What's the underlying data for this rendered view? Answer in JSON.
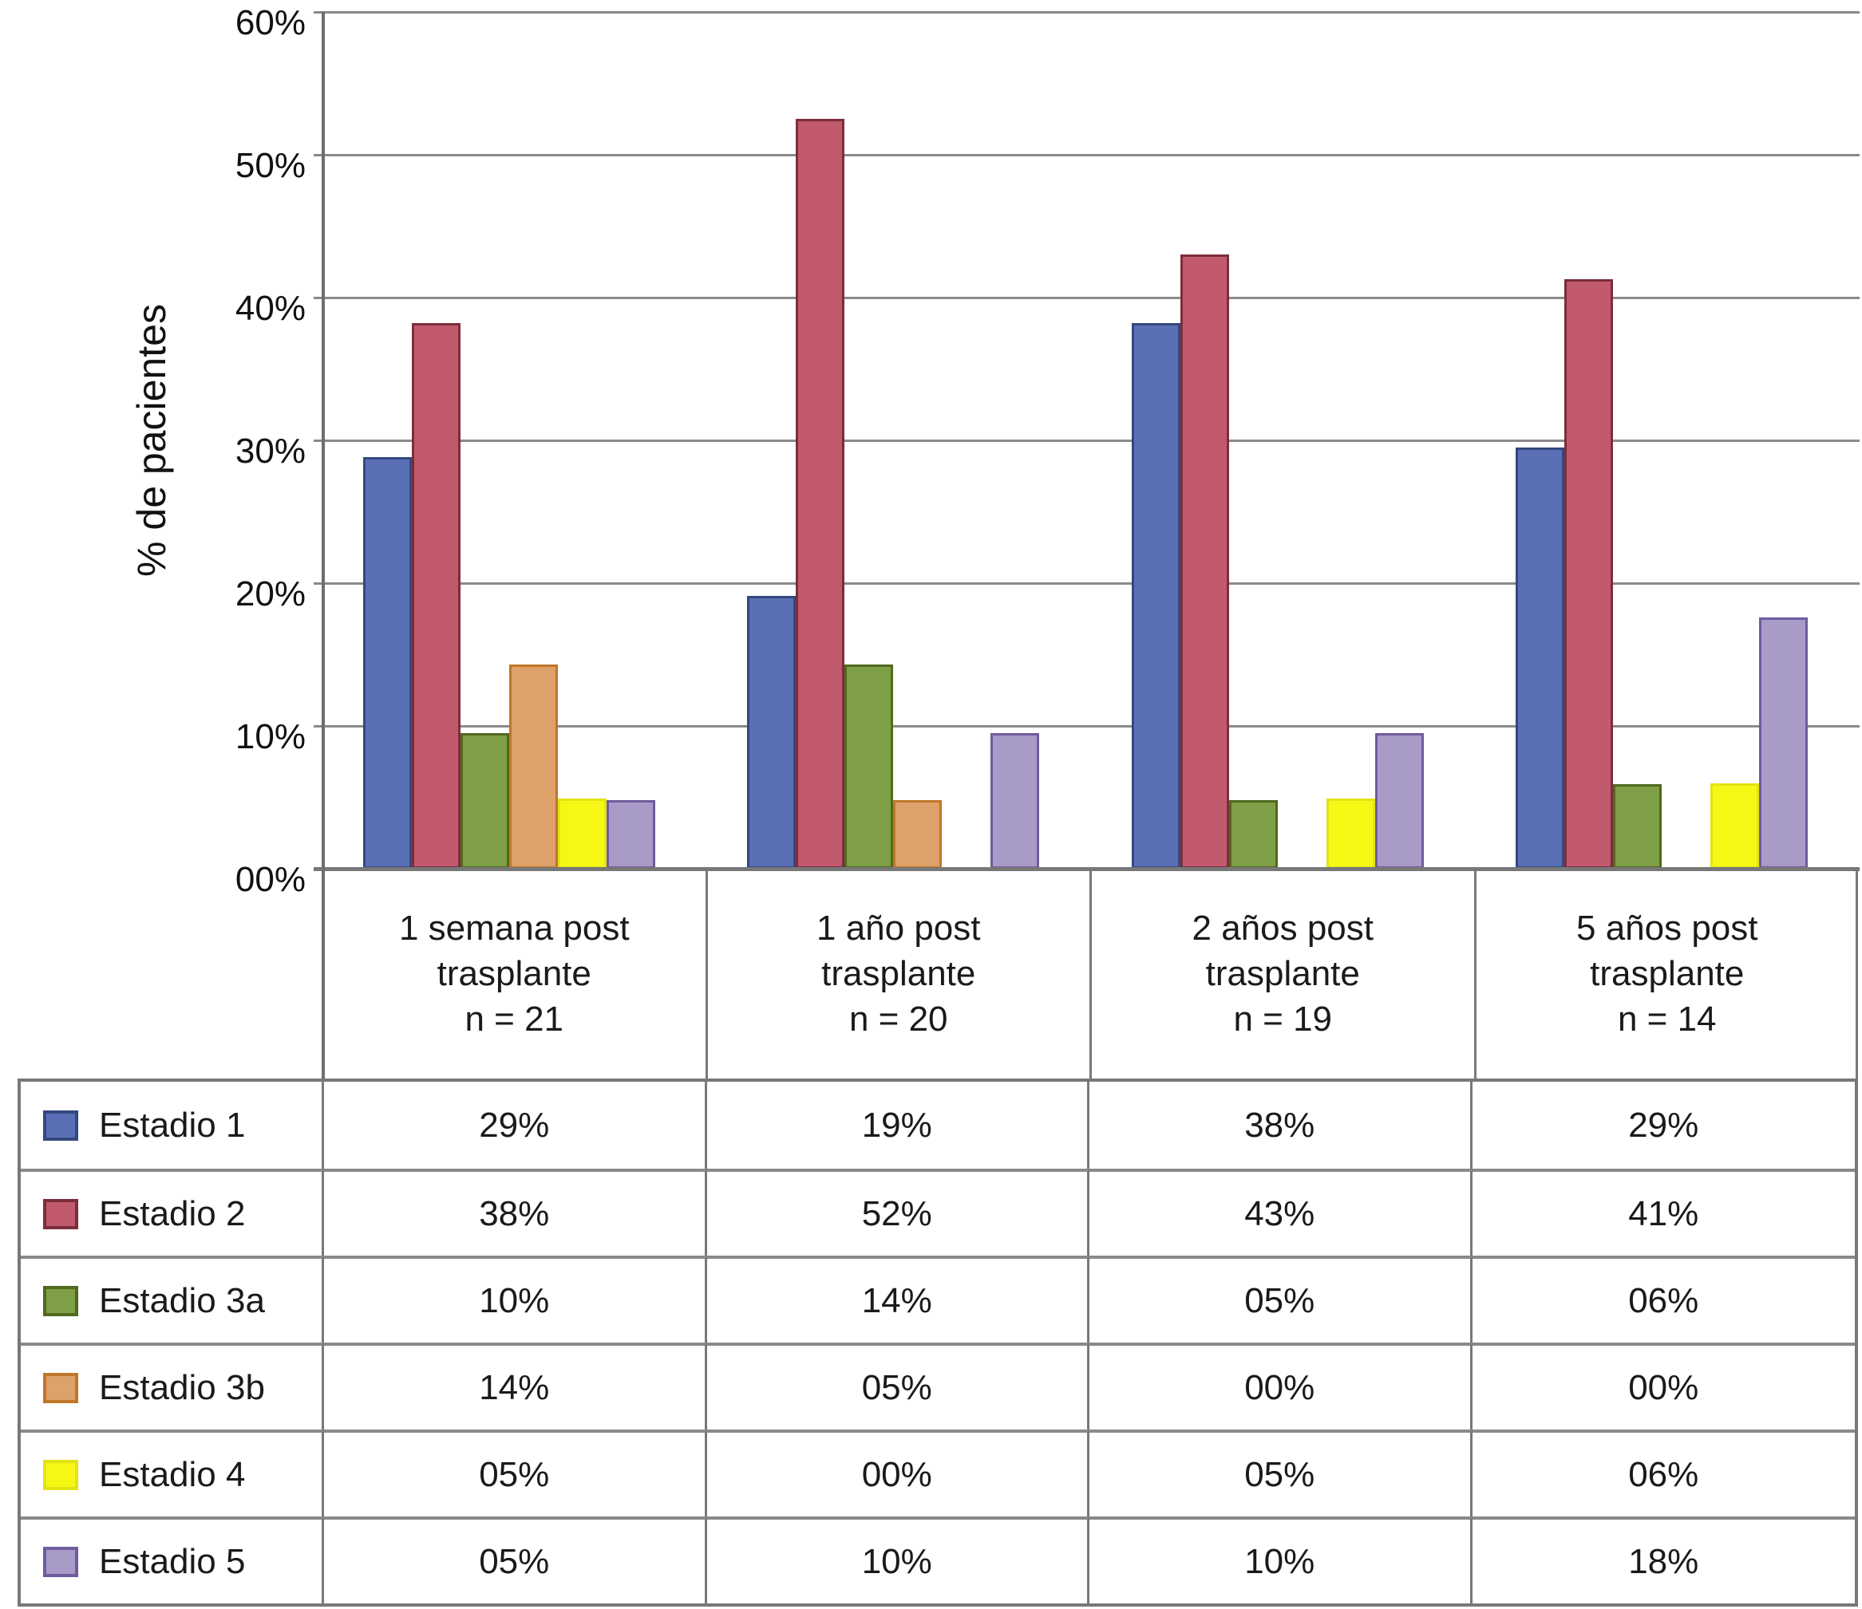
{
  "chart_data": {
    "type": "bar",
    "title": "",
    "ylabel": "% de pacientes",
    "ylim": [
      0,
      60
    ],
    "grid": true,
    "legend_position": "table-left-column",
    "y_ticks": [
      {
        "label": "60%",
        "value": 60
      },
      {
        "label": "50%",
        "value": 50
      },
      {
        "label": "40%",
        "value": 40
      },
      {
        "label": "30%",
        "value": 30
      },
      {
        "label": "20%",
        "value": 20
      },
      {
        "label": "10%",
        "value": 10
      },
      {
        "label": "00%",
        "value": 0
      }
    ],
    "categories": [
      "1 semana post trasplante n = 21",
      "1 año post trasplante n = 20",
      "2 años post trasplante n = 19",
      "5 años post trasplante n = 14"
    ],
    "category_header_lines": [
      [
        "1 semana post",
        "trasplante",
        "n = 21"
      ],
      [
        "1 año post",
        "trasplante",
        "n = 20"
      ],
      [
        "2 años post",
        "trasplante",
        "n = 19"
      ],
      [
        "5 años post",
        "trasplante",
        "n = 14"
      ]
    ],
    "n_values": [
      21,
      20,
      19,
      14
    ],
    "series": [
      {
        "name": "Estadio 1",
        "fill": "#5b6fb7",
        "border": "#34487e",
        "bar_values": [
          28.8,
          19.1,
          38.2,
          29.5
        ],
        "table_values": [
          "29%",
          "19%",
          "38%",
          "29%"
        ]
      },
      {
        "name": "Estadio 2",
        "fill": "#c05a6c",
        "border": "#7c2d3c",
        "bar_values": [
          38.2,
          52.5,
          43.0,
          41.3
        ],
        "table_values": [
          "38%",
          "52%",
          "43%",
          "41%"
        ]
      },
      {
        "name": "Estadio 3a",
        "fill": "#7e9f45",
        "border": "#50691f",
        "bar_values": [
          9.5,
          14.3,
          4.8,
          5.9
        ],
        "table_values": [
          "10%",
          "14%",
          "05%",
          "06%"
        ]
      },
      {
        "name": "Estadio 3b",
        "fill": "#dda169",
        "border": "#c1762a",
        "bar_values": [
          14.3,
          4.8,
          0,
          0
        ],
        "table_values": [
          "14%",
          "05%",
          "00%",
          "00%"
        ]
      },
      {
        "name": "Estadio 4",
        "fill": "#f7f716",
        "border": "#e3e314",
        "bar_values": [
          4.9,
          0,
          4.9,
          6.0
        ],
        "table_values": [
          "05%",
          "00%",
          "05%",
          "06%"
        ]
      },
      {
        "name": "Estadio 5",
        "fill": "#a99bc8",
        "border": "#6f5b9e",
        "bar_values": [
          4.8,
          9.5,
          9.5,
          17.6
        ],
        "table_values": [
          "05%",
          "10%",
          "10%",
          "18%"
        ]
      }
    ]
  }
}
